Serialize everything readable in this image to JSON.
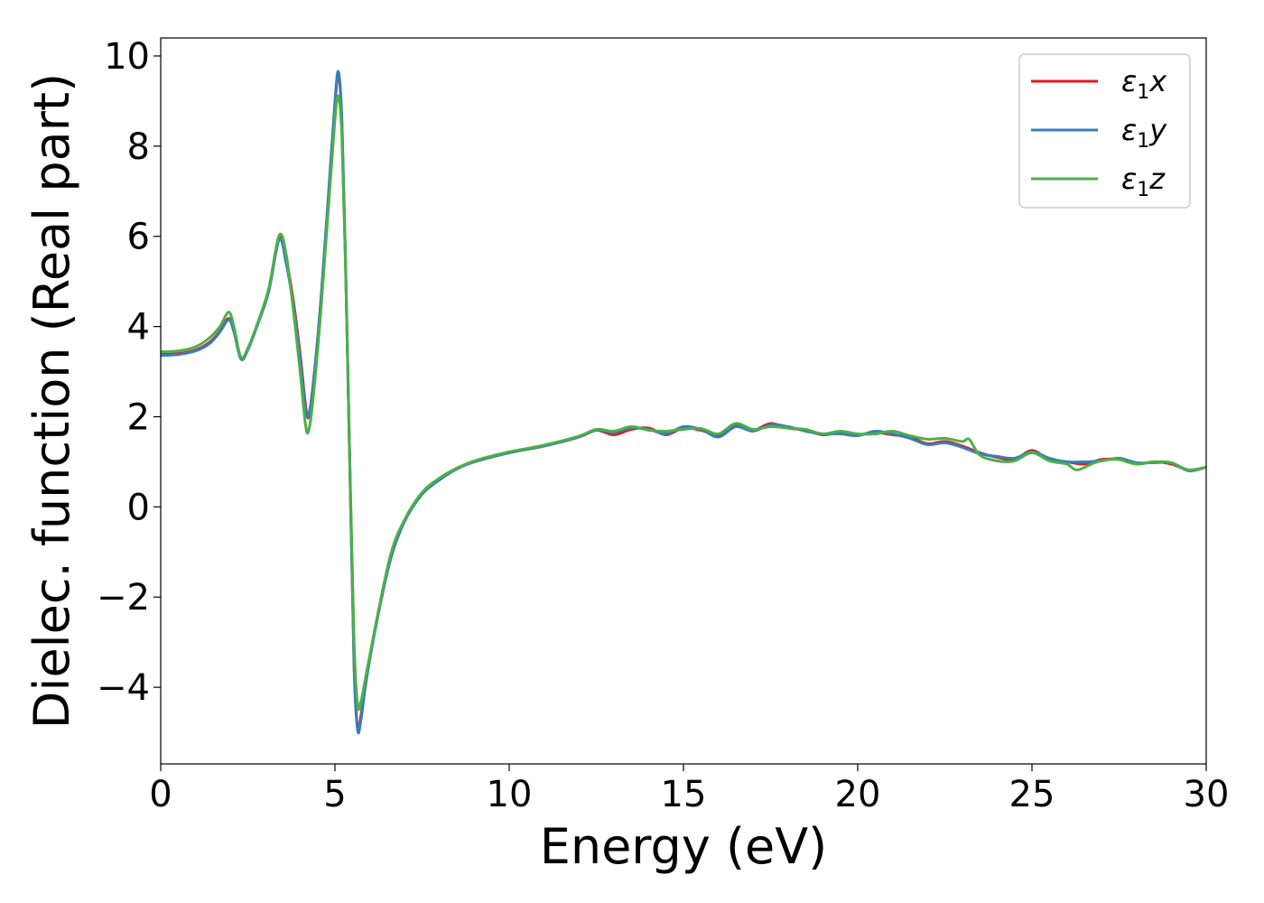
{
  "chart_data": {
    "type": "line",
    "title": "",
    "xlabel": "Energy (eV)",
    "ylabel": "Dielec. function (Real part)",
    "xlim": [
      0,
      30
    ],
    "ylim": [
      -5.7,
      10.4
    ],
    "x_ticks": [
      0,
      5,
      10,
      15,
      20,
      25,
      30
    ],
    "x_tick_labels": [
      "0",
      "5",
      "10",
      "15",
      "20",
      "25",
      "30"
    ],
    "y_ticks": [
      -4,
      -2,
      0,
      2,
      4,
      6,
      8,
      10
    ],
    "y_tick_labels": [
      "−4",
      "−2",
      "0",
      "2",
      "4",
      "6",
      "8",
      "10"
    ],
    "grid": false,
    "legend_position": "top-right",
    "series": [
      {
        "name": "ε1x",
        "legend": {
          "symbol": "ε",
          "sub": "1",
          "axis": "x"
        },
        "color": "#e41a1c",
        "points": [
          [
            0,
            3.38
          ],
          [
            0.5,
            3.4
          ],
          [
            1.0,
            3.48
          ],
          [
            1.4,
            3.65
          ],
          [
            1.7,
            3.9
          ],
          [
            1.95,
            4.18
          ],
          [
            2.1,
            3.9
          ],
          [
            2.3,
            3.3
          ],
          [
            2.5,
            3.5
          ],
          [
            2.8,
            4.1
          ],
          [
            3.1,
            4.8
          ],
          [
            3.4,
            5.95
          ],
          [
            3.6,
            5.5
          ],
          [
            3.8,
            4.6
          ],
          [
            4.0,
            3.4
          ],
          [
            4.15,
            2.3
          ],
          [
            4.25,
            2.0
          ],
          [
            4.4,
            2.9
          ],
          [
            4.6,
            4.6
          ],
          [
            4.8,
            6.7
          ],
          [
            5.0,
            8.9
          ],
          [
            5.1,
            9.6
          ],
          [
            5.2,
            8.5
          ],
          [
            5.3,
            5.5
          ],
          [
            5.45,
            0.0
          ],
          [
            5.55,
            -3.5
          ],
          [
            5.65,
            -4.9
          ],
          [
            5.75,
            -4.6
          ],
          [
            5.9,
            -3.8
          ],
          [
            6.2,
            -2.5
          ],
          [
            6.6,
            -1.1
          ],
          [
            7.0,
            -0.3
          ],
          [
            7.5,
            0.3
          ],
          [
            8.0,
            0.62
          ],
          [
            8.5,
            0.85
          ],
          [
            9.0,
            1.0
          ],
          [
            10.0,
            1.2
          ],
          [
            11.0,
            1.35
          ],
          [
            12.0,
            1.55
          ],
          [
            12.5,
            1.7
          ],
          [
            13.0,
            1.6
          ],
          [
            13.5,
            1.72
          ],
          [
            14.0,
            1.75
          ],
          [
            14.5,
            1.6
          ],
          [
            15.0,
            1.75
          ],
          [
            15.5,
            1.7
          ],
          [
            16.0,
            1.6
          ],
          [
            16.5,
            1.8
          ],
          [
            17.0,
            1.7
          ],
          [
            17.5,
            1.85
          ],
          [
            18.0,
            1.75
          ],
          [
            18.5,
            1.7
          ],
          [
            19.0,
            1.6
          ],
          [
            19.5,
            1.65
          ],
          [
            20.0,
            1.6
          ],
          [
            20.5,
            1.65
          ],
          [
            21.0,
            1.6
          ],
          [
            21.5,
            1.55
          ],
          [
            22.0,
            1.4
          ],
          [
            22.5,
            1.45
          ],
          [
            23.0,
            1.35
          ],
          [
            23.5,
            1.2
          ],
          [
            24.0,
            1.1
          ],
          [
            24.5,
            1.05
          ],
          [
            25.0,
            1.25
          ],
          [
            25.5,
            1.05
          ],
          [
            26.0,
            1.0
          ],
          [
            26.5,
            0.95
          ],
          [
            27.0,
            1.05
          ],
          [
            27.5,
            1.05
          ],
          [
            28.0,
            0.95
          ],
          [
            28.5,
            1.0
          ],
          [
            29.0,
            0.95
          ],
          [
            29.5,
            0.82
          ],
          [
            30.0,
            0.88
          ]
        ]
      },
      {
        "name": "ε1y",
        "legend": {
          "symbol": "ε",
          "sub": "1",
          "axis": "y"
        },
        "color": "#377eb8",
        "points": [
          [
            0,
            3.36
          ],
          [
            0.5,
            3.38
          ],
          [
            1.0,
            3.46
          ],
          [
            1.4,
            3.62
          ],
          [
            1.7,
            3.88
          ],
          [
            1.95,
            4.15
          ],
          [
            2.1,
            3.88
          ],
          [
            2.3,
            3.28
          ],
          [
            2.5,
            3.48
          ],
          [
            2.8,
            4.08
          ],
          [
            3.1,
            4.78
          ],
          [
            3.4,
            5.93
          ],
          [
            3.6,
            5.4
          ],
          [
            3.8,
            4.5
          ],
          [
            4.0,
            3.3
          ],
          [
            4.15,
            2.2
          ],
          [
            4.25,
            2.05
          ],
          [
            4.4,
            2.9
          ],
          [
            4.6,
            4.65
          ],
          [
            4.8,
            6.8
          ],
          [
            5.0,
            9.0
          ],
          [
            5.1,
            9.65
          ],
          [
            5.2,
            8.6
          ],
          [
            5.3,
            5.6
          ],
          [
            5.45,
            0.0
          ],
          [
            5.55,
            -3.6
          ],
          [
            5.65,
            -4.95
          ],
          [
            5.75,
            -4.7
          ],
          [
            5.9,
            -3.85
          ],
          [
            6.2,
            -2.55
          ],
          [
            6.6,
            -1.15
          ],
          [
            7.0,
            -0.32
          ],
          [
            7.5,
            0.28
          ],
          [
            8.0,
            0.6
          ],
          [
            8.5,
            0.84
          ],
          [
            9.0,
            1.0
          ],
          [
            10.0,
            1.2
          ],
          [
            11.0,
            1.35
          ],
          [
            12.0,
            1.55
          ],
          [
            12.5,
            1.7
          ],
          [
            13.0,
            1.65
          ],
          [
            13.5,
            1.75
          ],
          [
            14.0,
            1.72
          ],
          [
            14.5,
            1.62
          ],
          [
            15.0,
            1.78
          ],
          [
            15.5,
            1.72
          ],
          [
            16.0,
            1.55
          ],
          [
            16.5,
            1.78
          ],
          [
            17.0,
            1.68
          ],
          [
            17.5,
            1.82
          ],
          [
            18.0,
            1.78
          ],
          [
            18.5,
            1.68
          ],
          [
            19.0,
            1.62
          ],
          [
            19.5,
            1.62
          ],
          [
            20.0,
            1.58
          ],
          [
            20.5,
            1.68
          ],
          [
            21.0,
            1.62
          ],
          [
            21.5,
            1.52
          ],
          [
            22.0,
            1.38
          ],
          [
            22.5,
            1.42
          ],
          [
            23.0,
            1.32
          ],
          [
            23.5,
            1.18
          ],
          [
            24.0,
            1.12
          ],
          [
            24.5,
            1.08
          ],
          [
            25.0,
            1.22
          ],
          [
            25.5,
            1.08
          ],
          [
            26.0,
            1.0
          ],
          [
            26.5,
            1.0
          ],
          [
            27.0,
            1.02
          ],
          [
            27.5,
            1.08
          ],
          [
            28.0,
            0.98
          ],
          [
            28.5,
            0.98
          ],
          [
            29.0,
            0.98
          ],
          [
            29.5,
            0.8
          ],
          [
            30.0,
            0.88
          ]
        ]
      },
      {
        "name": "ε1z",
        "legend": {
          "symbol": "ε",
          "sub": "1",
          "axis": "z"
        },
        "color": "#4daf4a",
        "points": [
          [
            0,
            3.44
          ],
          [
            0.5,
            3.46
          ],
          [
            1.0,
            3.55
          ],
          [
            1.4,
            3.75
          ],
          [
            1.7,
            4.0
          ],
          [
            1.95,
            4.32
          ],
          [
            2.1,
            4.0
          ],
          [
            2.3,
            3.32
          ],
          [
            2.5,
            3.52
          ],
          [
            2.8,
            4.12
          ],
          [
            3.1,
            4.85
          ],
          [
            3.4,
            6.02
          ],
          [
            3.6,
            5.6
          ],
          [
            3.8,
            4.4
          ],
          [
            4.0,
            3.0
          ],
          [
            4.15,
            1.85
          ],
          [
            4.25,
            1.7
          ],
          [
            4.4,
            2.6
          ],
          [
            4.6,
            4.4
          ],
          [
            4.8,
            6.5
          ],
          [
            5.0,
            8.6
          ],
          [
            5.1,
            9.1
          ],
          [
            5.2,
            8.2
          ],
          [
            5.3,
            5.4
          ],
          [
            5.45,
            0.2
          ],
          [
            5.55,
            -3.0
          ],
          [
            5.65,
            -4.4
          ],
          [
            5.75,
            -4.3
          ],
          [
            5.9,
            -3.7
          ],
          [
            6.2,
            -2.5
          ],
          [
            6.6,
            -1.05
          ],
          [
            7.0,
            -0.28
          ],
          [
            7.5,
            0.32
          ],
          [
            8.0,
            0.64
          ],
          [
            8.5,
            0.86
          ],
          [
            9.0,
            1.02
          ],
          [
            10.0,
            1.22
          ],
          [
            11.0,
            1.37
          ],
          [
            12.0,
            1.57
          ],
          [
            12.5,
            1.72
          ],
          [
            13.0,
            1.68
          ],
          [
            13.5,
            1.78
          ],
          [
            14.0,
            1.7
          ],
          [
            14.5,
            1.68
          ],
          [
            15.0,
            1.72
          ],
          [
            15.5,
            1.74
          ],
          [
            16.0,
            1.62
          ],
          [
            16.5,
            1.85
          ],
          [
            17.0,
            1.72
          ],
          [
            17.5,
            1.78
          ],
          [
            18.0,
            1.75
          ],
          [
            18.5,
            1.72
          ],
          [
            19.0,
            1.62
          ],
          [
            19.5,
            1.68
          ],
          [
            20.0,
            1.62
          ],
          [
            20.5,
            1.62
          ],
          [
            21.0,
            1.68
          ],
          [
            21.5,
            1.58
          ],
          [
            22.0,
            1.5
          ],
          [
            22.5,
            1.52
          ],
          [
            23.0,
            1.45
          ],
          [
            23.2,
            1.5
          ],
          [
            23.5,
            1.15
          ],
          [
            24.0,
            1.02
          ],
          [
            24.5,
            1.02
          ],
          [
            25.0,
            1.2
          ],
          [
            25.5,
            1.02
          ],
          [
            26.0,
            0.95
          ],
          [
            26.3,
            0.82
          ],
          [
            26.8,
            0.98
          ],
          [
            27.2,
            1.05
          ],
          [
            27.5,
            1.05
          ],
          [
            28.0,
            0.95
          ],
          [
            28.5,
            1.0
          ],
          [
            29.0,
            0.98
          ],
          [
            29.5,
            0.82
          ],
          [
            30.0,
            0.88
          ]
        ]
      }
    ]
  }
}
